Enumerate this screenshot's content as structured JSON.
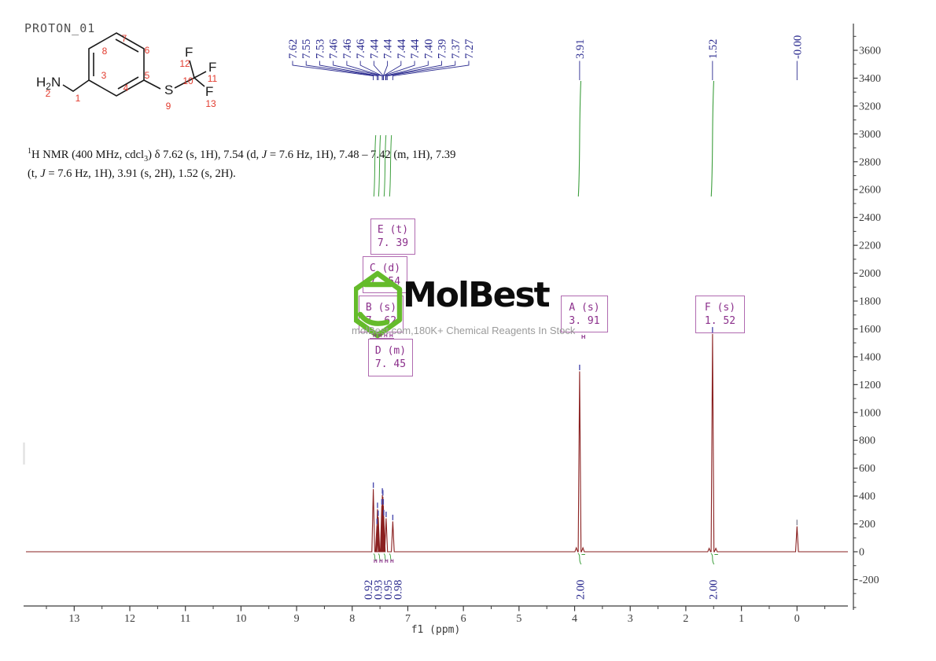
{
  "title": "PROTON_01",
  "structure": {
    "amine": {
      "h": "H",
      "sub": "2",
      "n": "N"
    },
    "s_label": "S",
    "f_label": "F",
    "numbers": [
      "1",
      "2",
      "3",
      "4",
      "5",
      "6",
      "7",
      "8",
      "9",
      "10",
      "11",
      "12",
      "13"
    ]
  },
  "citation": {
    "segments": [
      {
        "t": "1",
        "s": "sup"
      },
      {
        "t": "H NMR (400 MHz, cdcl"
      },
      {
        "t": "3",
        "s": "sub"
      },
      {
        "t": ") δ 7.62 (s, 1H), 7.54 (d, "
      },
      {
        "t": "J",
        "s": "i"
      },
      {
        "t": " = 7.6 Hz, 1H), 7.48 – 7.42 (m, 1H), 7.39"
      },
      {
        "s": "br"
      },
      {
        "t": "(t, "
      },
      {
        "t": "J",
        "s": "i"
      },
      {
        "t": " = 7.6 Hz, 1H), 3.91 (s, 2H), 1.52 (s, 2H)."
      }
    ]
  },
  "watermark": {
    "brand": "MolBest",
    "tagline": "molBest.com,180K+ Chemical Reagents In Stock"
  },
  "colors": {
    "spectrum": "#8a2020",
    "peak_label": "#2b2b8f",
    "integral_curve": "#3c9e3c",
    "pick_mark": "#4b4bae",
    "tms_mark": "#8a8a9a",
    "box_border": "#b06ab0",
    "box_text": "#8b2f8b",
    "logo_green": "#65bb2b",
    "atom_number_red": "#e23b2e",
    "axis": "#3a3a3a"
  },
  "chart_data": {
    "type": "line",
    "title": "PROTON_01",
    "xlabel": "f1 (ppm)",
    "ylabel": "",
    "xlim": [
      13.95,
      -0.95
    ],
    "ylim": [
      -420,
      3800
    ],
    "x_ticks": [
      "13",
      "12",
      "11",
      "10",
      "9",
      "8",
      "7",
      "6",
      "5",
      "4",
      "3",
      "2",
      "1",
      "0"
    ],
    "x_tick_values": [
      13,
      12,
      11,
      10,
      9,
      8,
      7,
      6,
      5,
      4,
      3,
      2,
      1,
      0
    ],
    "y_ticks": [
      "3600",
      "3400",
      "3200",
      "3000",
      "2800",
      "2600",
      "2400",
      "2200",
      "2000",
      "1800",
      "1600",
      "1400",
      "1200",
      "1000",
      "800",
      "600",
      "400",
      "200",
      "0",
      "-200"
    ],
    "y_tick_values": [
      3600,
      3400,
      3200,
      3000,
      2800,
      2600,
      2400,
      2200,
      2000,
      1800,
      1600,
      1400,
      1200,
      1000,
      800,
      600,
      400,
      200,
      0,
      -200
    ],
    "grid": false,
    "peak_labels": {
      "aromatic": [
        "7.62",
        "7.55",
        "7.53",
        "7.46",
        "7.46",
        "7.46",
        "7.44",
        "7.44",
        "7.44",
        "7.44",
        "7.40",
        "7.39",
        "7.37",
        "7.27"
      ],
      "aromatic_ppm": [
        7.62,
        7.55,
        7.53,
        7.46,
        7.46,
        7.46,
        7.44,
        7.44,
        7.44,
        7.44,
        7.4,
        7.39,
        7.37,
        7.27
      ],
      "singlets": [
        {
          "text": "3.91",
          "ppm": 3.91
        },
        {
          "text": "1.52",
          "ppm": 1.52
        },
        {
          "text": "-0.00",
          "ppm": 0.0
        }
      ]
    },
    "peaks": [
      {
        "ppm": 7.62,
        "intensity": 450
      },
      {
        "ppm": 7.555,
        "intensity": 190
      },
      {
        "ppm": 7.545,
        "intensity": 305
      },
      {
        "ppm": 7.532,
        "intensity": 248
      },
      {
        "ppm": 7.468,
        "intensity": 330
      },
      {
        "ppm": 7.458,
        "intensity": 408
      },
      {
        "ppm": 7.448,
        "intensity": 395
      },
      {
        "ppm": 7.44,
        "intensity": 330
      },
      {
        "ppm": 7.432,
        "intensity": 252
      },
      {
        "ppm": 7.39,
        "intensity": 240
      },
      {
        "ppm": 7.27,
        "intensity": 218
      },
      {
        "ppm": 3.97,
        "intensity": 28
      },
      {
        "ppm": 3.91,
        "intensity": 1295
      },
      {
        "ppm": 3.85,
        "intensity": 28
      },
      {
        "ppm": 1.58,
        "intensity": 24
      },
      {
        "ppm": 1.52,
        "intensity": 1565
      },
      {
        "ppm": 1.46,
        "intensity": 24
      },
      {
        "ppm": 0.0,
        "intensity": 182
      }
    ],
    "integrals": [
      {
        "value": "0.92",
        "ppm": 7.62
      },
      {
        "value": "0.93",
        "ppm": 7.54
      },
      {
        "value": "0.95",
        "ppm": 7.45
      },
      {
        "value": "0.98",
        "ppm": 7.39
      },
      {
        "value": "2.00",
        "ppm": 3.91
      },
      {
        "value": "2.00",
        "ppm": 1.52
      }
    ],
    "multiplets": [
      {
        "id": "E",
        "mult": "(t)",
        "shift": "7. 39"
      },
      {
        "id": "C",
        "mult": "(d)",
        "shift": "7. 54"
      },
      {
        "id": "B",
        "mult": "(s)",
        "shift": "7. 62"
      },
      {
        "id": "D",
        "mult": "(m)",
        "shift": "7. 45"
      },
      {
        "id": "A",
        "mult": "(s)",
        "shift": "3. 91"
      },
      {
        "id": "F",
        "mult": "(s)",
        "shift": "1. 52"
      }
    ],
    "assignment_label": "H"
  }
}
